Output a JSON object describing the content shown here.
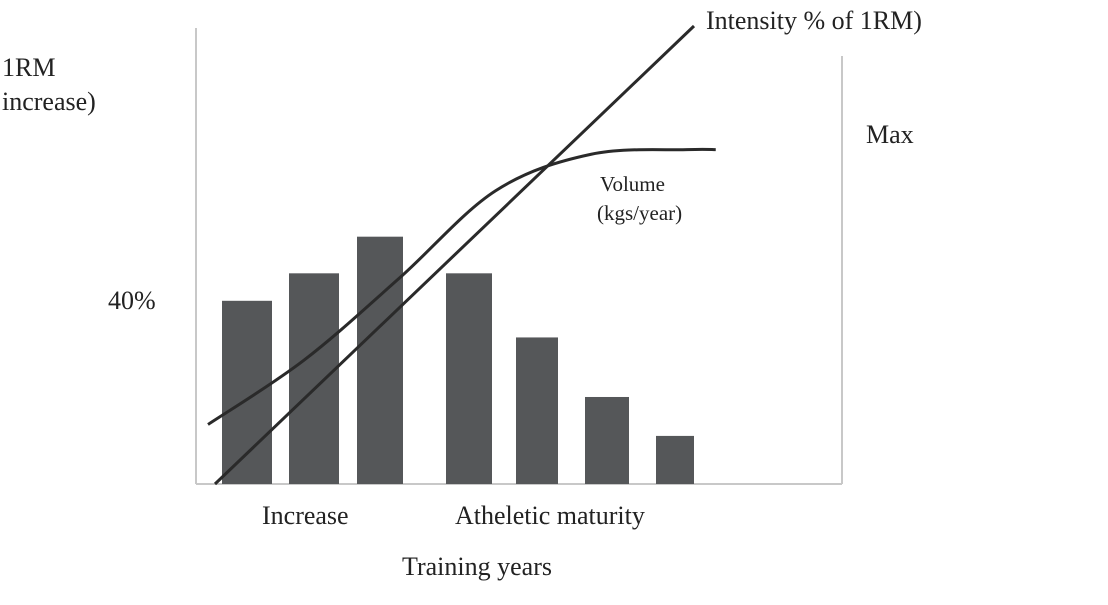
{
  "chart_data": {
    "type": "bar",
    "left_axis_label": [
      "1RM",
      "increase)"
    ],
    "right_axis_label": "Max",
    "left_tick_label": "40%",
    "left_tick_value": 40,
    "xlabel": "Training years",
    "x_group_labels": [
      "Increase",
      "Atheletic maturity"
    ],
    "ylim": [
      0,
      100
    ],
    "bar_color": "#555759",
    "line_color": "#2a2a2a",
    "bars": {
      "name": "1RM increase",
      "values": [
        40,
        46,
        54,
        46,
        32,
        19,
        10.5
      ]
    },
    "series": [
      {
        "name": "Intensity % of 1RM)",
        "type": "line",
        "x": [
          0,
          10
        ],
        "values": [
          0,
          100
        ]
      },
      {
        "name": "Volume (kgs/year)",
        "label_lines": [
          "Volume",
          "(kgs/year)"
        ],
        "type": "line",
        "x": [
          0,
          2,
          4,
          6,
          8,
          10,
          10.6
        ],
        "values": [
          13,
          27,
          45,
          64,
          72,
          73,
          73
        ]
      }
    ]
  }
}
